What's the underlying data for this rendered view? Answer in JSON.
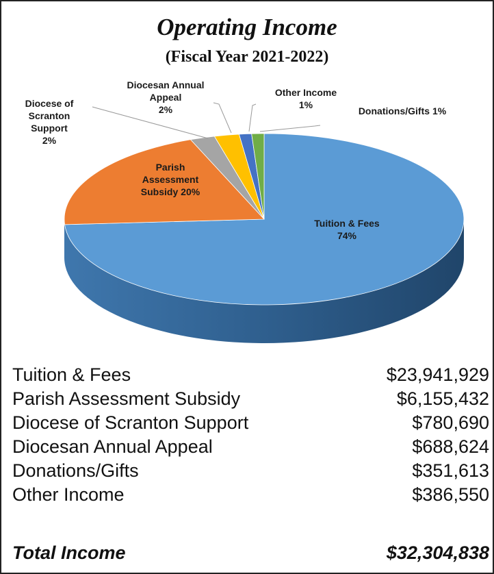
{
  "chart_data": {
    "type": "pie",
    "title": "Operating Income",
    "subtitle": "(Fiscal Year 2021-2022)",
    "categories": [
      "Tuition & Fees",
      "Parish Assessment Subsidy",
      "Diocese of Scranton Support",
      "Diocesan Annual Appeal",
      "Other Income",
      "Donations/Gifts"
    ],
    "values": [
      74,
      20,
      2,
      2,
      1,
      1
    ],
    "value_labels": [
      "74%",
      "20%",
      "2%",
      "2%",
      "1%",
      "1%"
    ],
    "colors": [
      "#5b9bd5",
      "#ed7d31",
      "#a5a5a5",
      "#ffc000",
      "#4472c4",
      "#70ad47"
    ]
  },
  "table": {
    "rows": [
      [
        "Tuition & Fees",
        "$23,941,929"
      ],
      [
        "Parish Assessment Subsidy",
        "$6,155,432"
      ],
      [
        "Diocese of Scranton Support",
        "$780,690"
      ],
      [
        "Diocesan Annual Appeal",
        "$688,624"
      ],
      [
        "Donations/Gifts",
        "$351,613"
      ],
      [
        "Other Income",
        "$386,550"
      ]
    ],
    "total": [
      "Total Income",
      "$32,304,838"
    ]
  }
}
